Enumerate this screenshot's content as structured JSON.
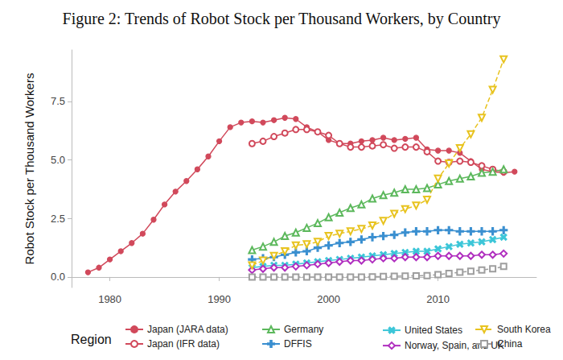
{
  "chart_data": {
    "type": "line",
    "title": "Figure 2: Trends of Robot Stock per Thousand Workers, by Country",
    "y_label": "Robot Stock per Thousand Workers",
    "legend_title": "Region",
    "legend": "bottom",
    "grid": false,
    "xlim": [
      1976.5,
      2019
    ],
    "xticks": [
      1980,
      1990,
      2000,
      2010
    ],
    "ylim": [
      -0.45,
      9.7
    ],
    "yticks": [
      {
        "value": 0,
        "label": "0.0"
      },
      {
        "value": 2.5,
        "label": "2.5"
      },
      {
        "value": 5,
        "label": "5.0"
      },
      {
        "value": 7.5,
        "label": "7.5"
      }
    ],
    "series": [
      {
        "name": "Japan (JARA data)",
        "color": "#d1495b",
        "marker": "circle",
        "line_style": "solid",
        "x": [
          1978,
          1979,
          1980,
          1981,
          1982,
          1983,
          1984,
          1985,
          1986,
          1987,
          1988,
          1989,
          1990,
          1991,
          1992,
          1993,
          1994,
          1995,
          1996,
          1997,
          1998,
          1999,
          2000,
          2001,
          2002,
          2003,
          2004,
          2005,
          2006,
          2007,
          2008,
          2009,
          2010,
          2011,
          2012,
          2013,
          2014,
          2015,
          2016,
          2017
        ],
        "values": [
          0.2,
          0.4,
          0.75,
          1.1,
          1.45,
          1.85,
          2.45,
          3.1,
          3.65,
          4.1,
          4.6,
          5.15,
          5.8,
          6.4,
          6.6,
          6.65,
          6.6,
          6.7,
          6.8,
          6.75,
          6.4,
          6.2,
          5.85,
          5.7,
          5.7,
          5.8,
          5.85,
          5.95,
          5.85,
          5.9,
          5.95,
          5.45,
          5.4,
          5.4,
          5.3,
          4.95,
          4.6,
          4.5,
          4.45,
          4.5
        ]
      },
      {
        "name": "Japan (IFR data)",
        "color": "#d1495b",
        "marker": "open_circle",
        "line_style": "solid",
        "x": [
          1993,
          1994,
          1995,
          1996,
          1997,
          1998,
          1999,
          2000,
          2001,
          2002,
          2003,
          2004,
          2005,
          2006,
          2007,
          2008,
          2009,
          2010,
          2011,
          2012,
          2013,
          2014,
          2015,
          2016
        ],
        "values": [
          5.7,
          5.8,
          6.0,
          6.15,
          6.3,
          6.3,
          6.2,
          6.05,
          5.7,
          5.55,
          5.55,
          5.6,
          5.65,
          5.5,
          5.55,
          5.55,
          5.35,
          4.95,
          4.9,
          4.95,
          4.9,
          4.75,
          4.6,
          4.5
        ]
      },
      {
        "name": "Germany",
        "color": "#5cb85c",
        "marker": "open_triangle",
        "line_style": "solid",
        "x": [
          1993,
          1994,
          1995,
          1996,
          1997,
          1998,
          1999,
          2000,
          2001,
          2002,
          2003,
          2004,
          2005,
          2006,
          2007,
          2008,
          2009,
          2010,
          2011,
          2012,
          2013,
          2014,
          2015,
          2016
        ],
        "values": [
          1.15,
          1.3,
          1.5,
          1.75,
          1.9,
          2.1,
          2.3,
          2.55,
          2.75,
          2.95,
          3.1,
          3.35,
          3.5,
          3.6,
          3.75,
          3.75,
          3.8,
          3.95,
          4.1,
          4.2,
          4.3,
          4.45,
          4.5,
          4.6
        ]
      },
      {
        "name": "DFFIS",
        "color": "#3a8fd0",
        "marker": "plus",
        "line_style": "solid",
        "x": [
          1993,
          1994,
          1995,
          1996,
          1997,
          1998,
          1999,
          2000,
          2001,
          2002,
          2003,
          2004,
          2005,
          2006,
          2007,
          2008,
          2009,
          2010,
          2011,
          2012,
          2013,
          2014,
          2015,
          2016
        ],
        "values": [
          0.75,
          0.8,
          0.85,
          0.95,
          1.05,
          1.1,
          1.25,
          1.35,
          1.45,
          1.5,
          1.6,
          1.7,
          1.75,
          1.8,
          1.9,
          1.95,
          1.95,
          2.0,
          2.0,
          1.95,
          1.95,
          1.95,
          1.95,
          2.0
        ]
      },
      {
        "name": "United States",
        "color": "#3cc6d8",
        "marker": "cross",
        "line_style": "solid",
        "x": [
          1993,
          1994,
          1995,
          1996,
          1997,
          1998,
          1999,
          2000,
          2001,
          2002,
          2003,
          2004,
          2005,
          2006,
          2007,
          2008,
          2009,
          2010,
          2011,
          2012,
          2013,
          2014,
          2015,
          2016
        ],
        "values": [
          0.4,
          0.45,
          0.5,
          0.5,
          0.55,
          0.6,
          0.65,
          0.7,
          0.75,
          0.8,
          0.85,
          0.9,
          0.95,
          1.0,
          1.05,
          1.1,
          1.1,
          1.2,
          1.3,
          1.4,
          1.45,
          1.5,
          1.6,
          1.7
        ]
      },
      {
        "name": "Norway, Spain, and UK",
        "color": "#b02ebf",
        "marker": "open_diamond",
        "line_style": "solid",
        "x": [
          1993,
          1994,
          1995,
          1996,
          1997,
          1998,
          1999,
          2000,
          2001,
          2002,
          2003,
          2004,
          2005,
          2006,
          2007,
          2008,
          2009,
          2010,
          2011,
          2012,
          2013,
          2014,
          2015,
          2016
        ],
        "values": [
          0.3,
          0.35,
          0.4,
          0.4,
          0.45,
          0.5,
          0.55,
          0.6,
          0.65,
          0.7,
          0.7,
          0.75,
          0.8,
          0.8,
          0.85,
          0.85,
          0.85,
          0.9,
          0.9,
          0.9,
          0.9,
          0.95,
          0.95,
          1.0
        ]
      },
      {
        "name": "South Korea",
        "color": "#e8c31f",
        "marker": "open_triangle_down",
        "line_style": "dashed",
        "x": [
          1993,
          1994,
          1995,
          1996,
          1997,
          1998,
          1999,
          2000,
          2001,
          2002,
          2003,
          2004,
          2005,
          2006,
          2007,
          2008,
          2009,
          2010,
          2011,
          2012,
          2013,
          2014,
          2015,
          2016
        ],
        "values": [
          0.5,
          0.7,
          0.9,
          1.1,
          1.35,
          1.4,
          1.5,
          1.75,
          1.85,
          1.95,
          2.05,
          2.2,
          2.4,
          2.7,
          2.9,
          3.05,
          3.3,
          4.2,
          4.85,
          5.5,
          6.1,
          6.8,
          8.0,
          9.3
        ]
      },
      {
        "name": "China",
        "color": "#9e9e9e",
        "marker": "open_square",
        "line_style": "dashed",
        "x": [
          1993,
          1994,
          1995,
          1996,
          1997,
          1998,
          1999,
          2000,
          2001,
          2002,
          2003,
          2004,
          2005,
          2006,
          2007,
          2008,
          2009,
          2010,
          2011,
          2012,
          2013,
          2014,
          2015,
          2016
        ],
        "values": [
          0,
          0,
          0,
          0,
          0,
          0,
          0,
          0,
          0,
          0,
          0,
          0.01,
          0.02,
          0.03,
          0.04,
          0.05,
          0.06,
          0.1,
          0.15,
          0.2,
          0.25,
          0.3,
          0.35,
          0.45
        ]
      }
    ]
  }
}
